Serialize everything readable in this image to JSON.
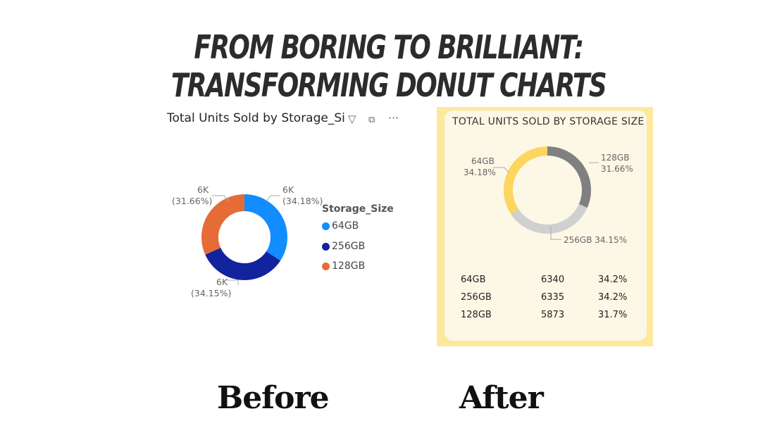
{
  "headline": "FROM BORING TO BRILLIANT: TRANSFORMING DONUT CHARTS",
  "before": {
    "caption": "Before",
    "title": "Total Units Sold by Storage_Si",
    "icons": [
      "filter-icon",
      "focus-mode-icon",
      "more-options-icon"
    ],
    "legend_title": "Storage_Size"
  },
  "after": {
    "caption": "After",
    "panel_color": "#fde89c",
    "card_color": "#fdf7e6",
    "table": [
      {
        "label": "64GB",
        "units": "6340",
        "pct": "34.2%"
      },
      {
        "label": "256GB",
        "units": "6335",
        "pct": "34.2%"
      },
      {
        "label": "128GB",
        "units": "5873",
        "pct": "31.7%"
      }
    ]
  },
  "chart_data": [
    {
      "type": "pie",
      "title": "Total Units Sold by Storage_Si",
      "legend": "right",
      "categories": [
        "64GB",
        "256GB",
        "128GB"
      ],
      "values": [
        34.18,
        34.15,
        31.66
      ],
      "colors": [
        "#118dff",
        "#12239e",
        "#e66c37"
      ],
      "data_labels": [
        [
          "6K",
          "(34.18%)"
        ],
        [
          "6K",
          "(34.15%)"
        ],
        [
          "6K",
          "(31.66%)"
        ]
      ]
    },
    {
      "type": "pie",
      "title": "TOTAL UNITS SOLD BY STORAGE SIZE",
      "legend": "none",
      "categories": [
        "128GB",
        "256GB",
        "64GB"
      ],
      "values": [
        31.66,
        34.15,
        34.18
      ],
      "colors": [
        "#808080",
        "#d0d0d0",
        "#fdd660"
      ],
      "data_labels": [
        [
          "128GB",
          "31.66%"
        ],
        [
          "256GB 34.15%"
        ],
        [
          "64GB",
          "34.18%"
        ]
      ]
    }
  ]
}
